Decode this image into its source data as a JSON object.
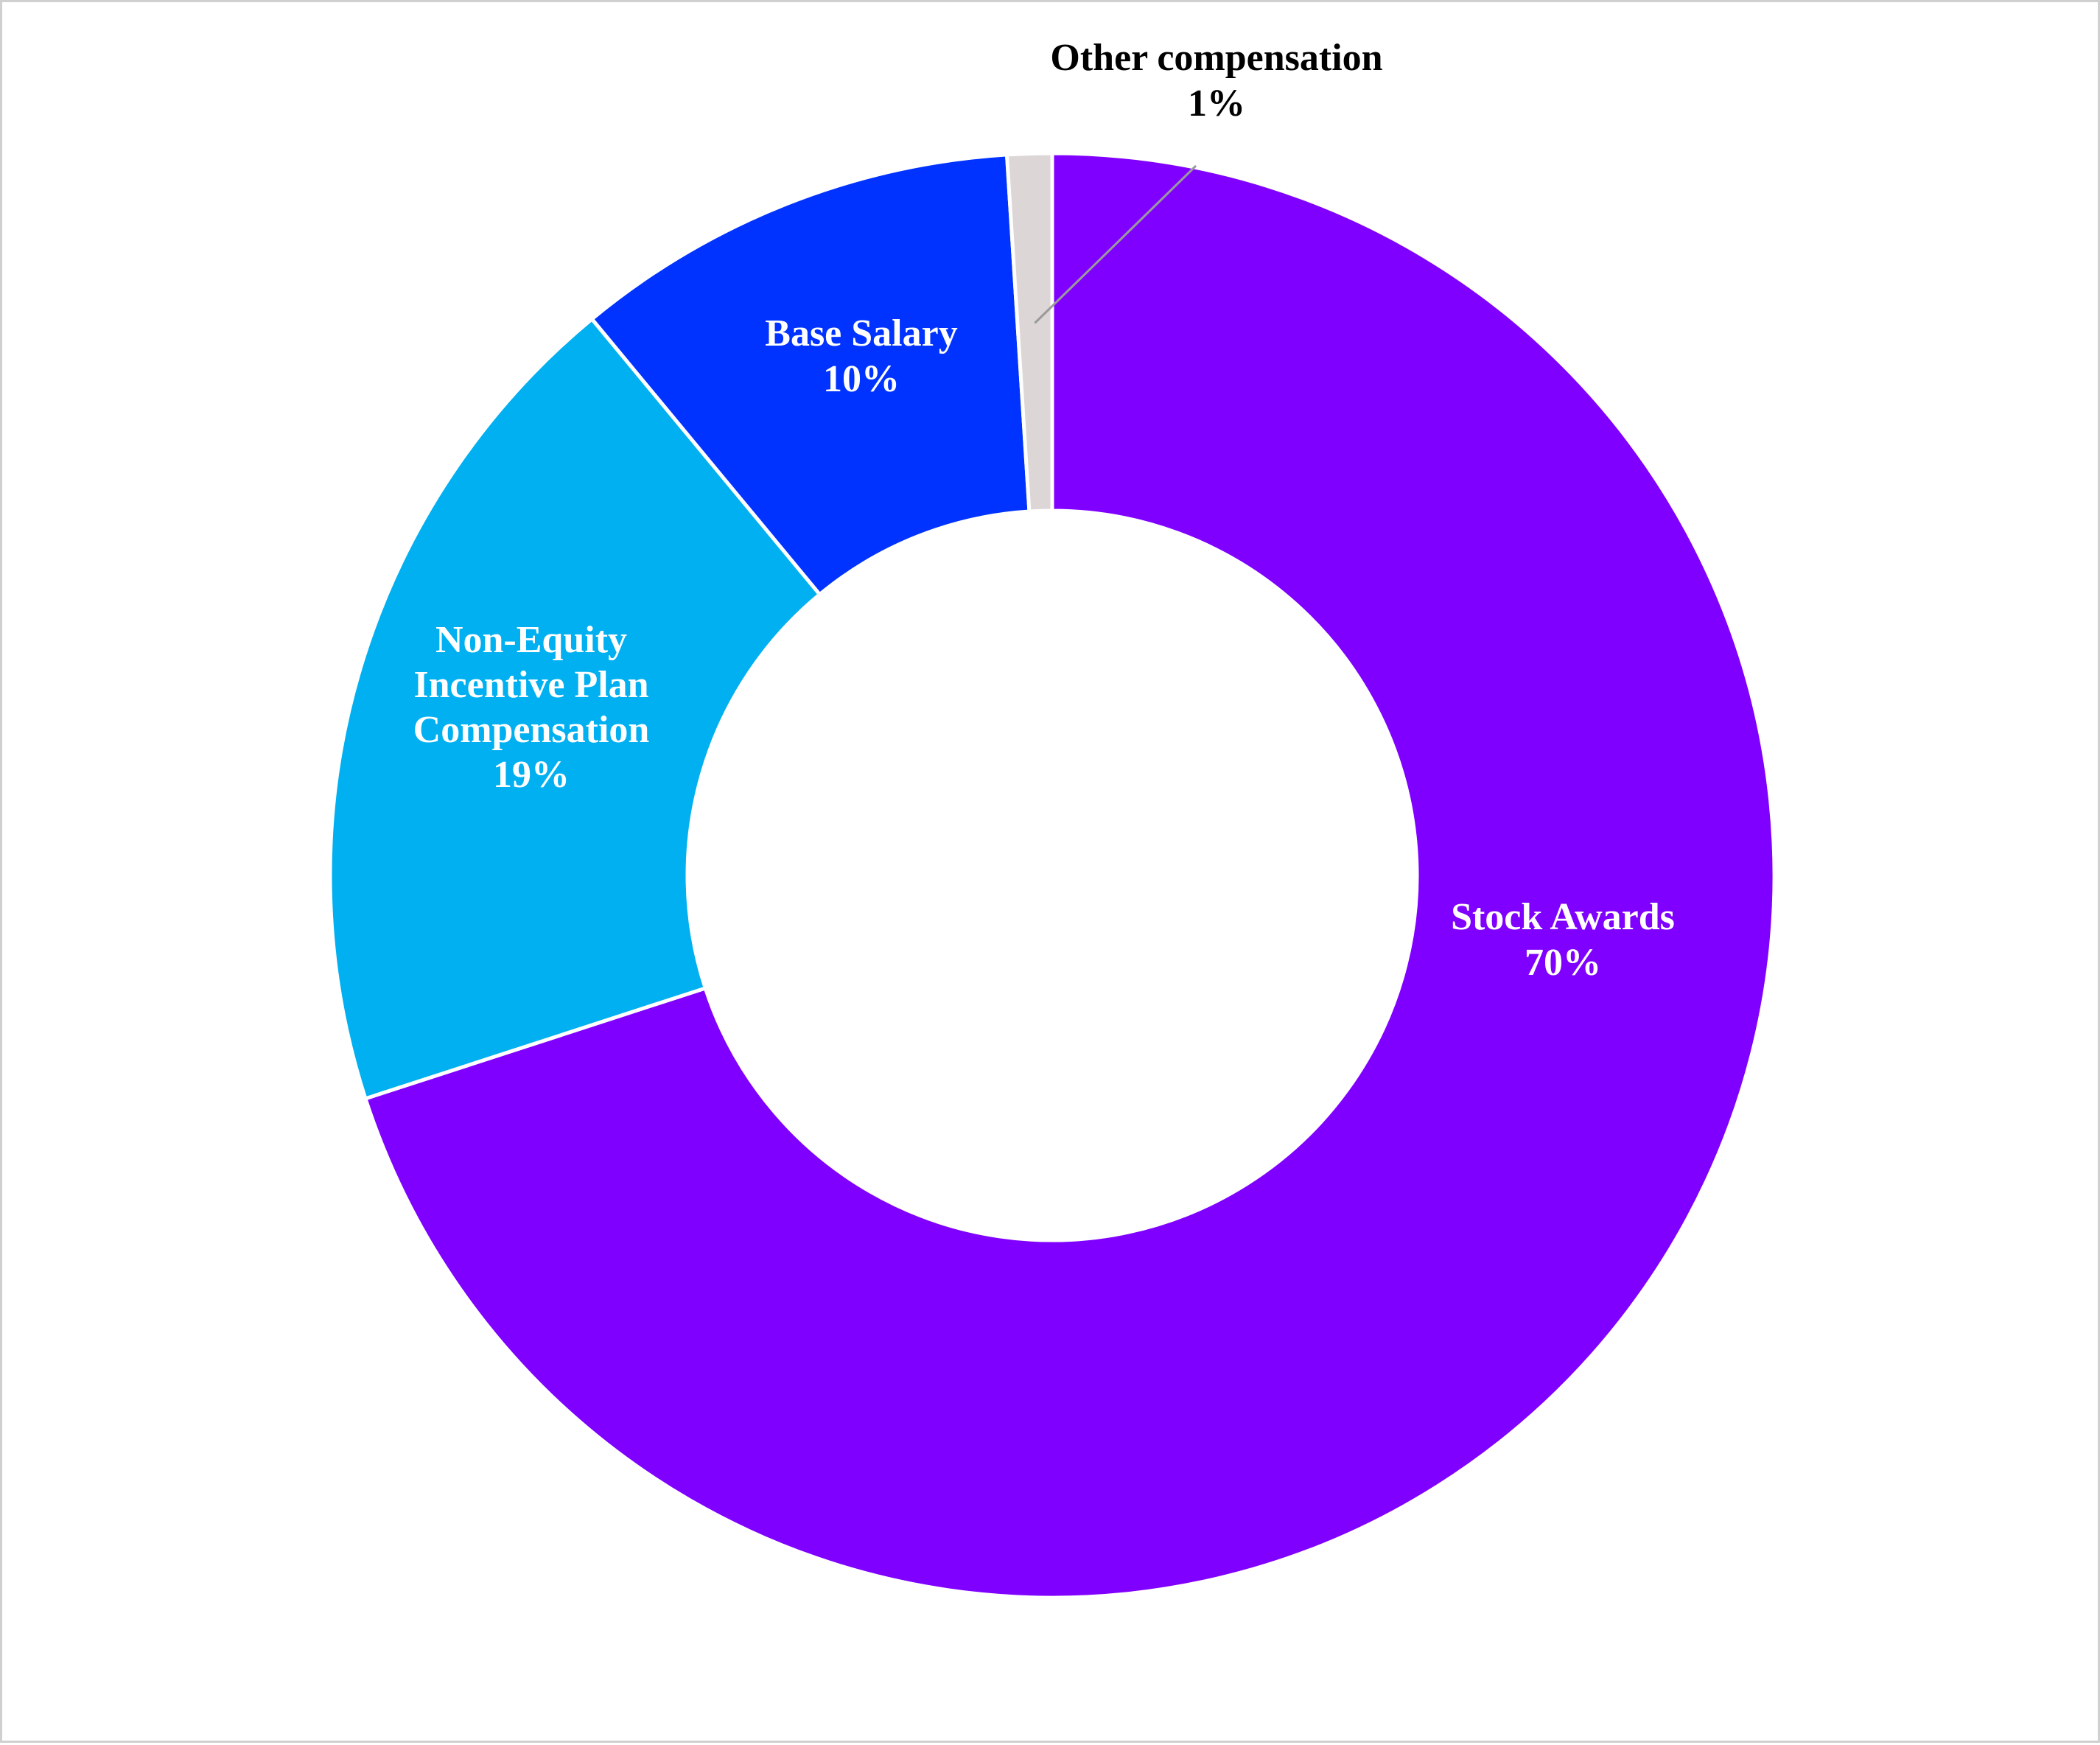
{
  "chart_data": {
    "type": "pie",
    "variant": "donut",
    "title": "",
    "start_angle_deg": 0,
    "direction": "clockwise",
    "slices": [
      {
        "name": "Stock Awards",
        "value": 70,
        "label": "70%",
        "color": "#8000ff",
        "label_color": "#ffffff"
      },
      {
        "name": "Non-Equity Incentive Plan Compensation",
        "name_lines": [
          "Non-Equity",
          "Incentive Plan",
          "Compensation"
        ],
        "value": 19,
        "label": "19%",
        "color": "#00b0f0",
        "label_color": "#ffffff"
      },
      {
        "name": "Base Salary",
        "value": 10,
        "label": "10%",
        "color": "#0033ff",
        "label_color": "#ffffff"
      },
      {
        "name": "Other compensation",
        "value": 1,
        "label": "1%",
        "color": "#ddd6d6",
        "label_color": "#000000"
      }
    ],
    "legend": "none"
  }
}
